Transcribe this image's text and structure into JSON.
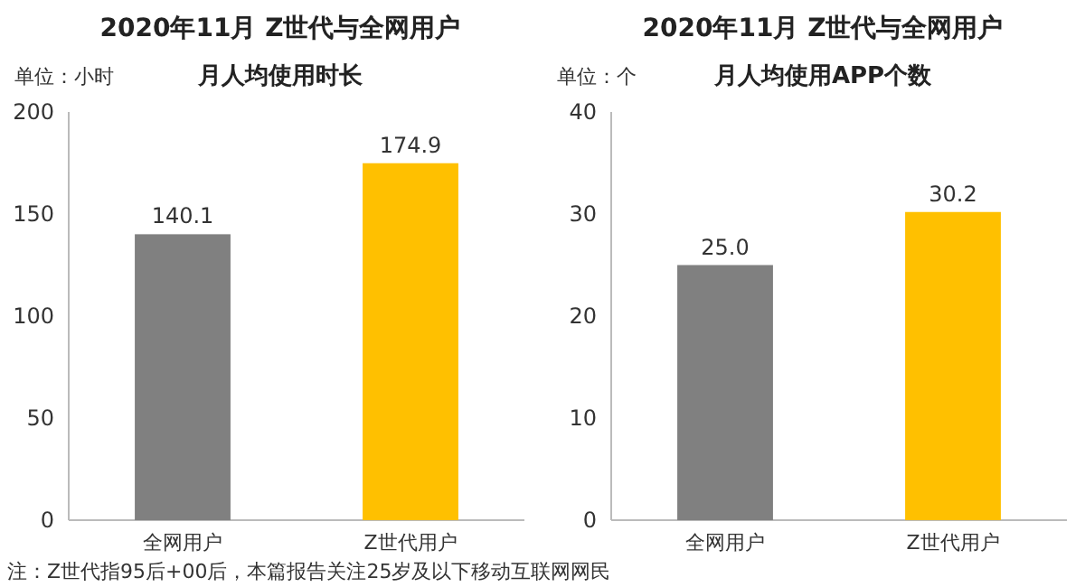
{
  "chart_data": [
    {
      "type": "bar",
      "title": "2020年11月 Z世代与全网用户",
      "subtitle": "月人均使用时长",
      "ylabel": "单位：小时",
      "categories": [
        "全网用户",
        "Z世代用户"
      ],
      "values": [
        140.1,
        174.9
      ],
      "colors": [
        "#808080",
        "#ffc000"
      ],
      "ylim": [
        0,
        200
      ],
      "yticks": [
        0,
        50,
        100,
        150,
        200
      ],
      "data_labels": true,
      "annotations": [
        "注：Z世代指95后+00后，本篇报告关注25岁及以下移动互联网网民"
      ]
    },
    {
      "type": "bar",
      "title": "2020年11月 Z世代与全网用户",
      "subtitle": "月人均使用APP个数",
      "ylabel": "单位：个",
      "categories": [
        "全网用户",
        "Z世代用户"
      ],
      "values": [
        25.0,
        30.2
      ],
      "value_labels": [
        "25.0",
        "30.2"
      ],
      "colors": [
        "#808080",
        "#ffc000"
      ],
      "ylim": [
        0,
        40
      ],
      "yticks": [
        0,
        10,
        20,
        30,
        40
      ]
    }
  ]
}
